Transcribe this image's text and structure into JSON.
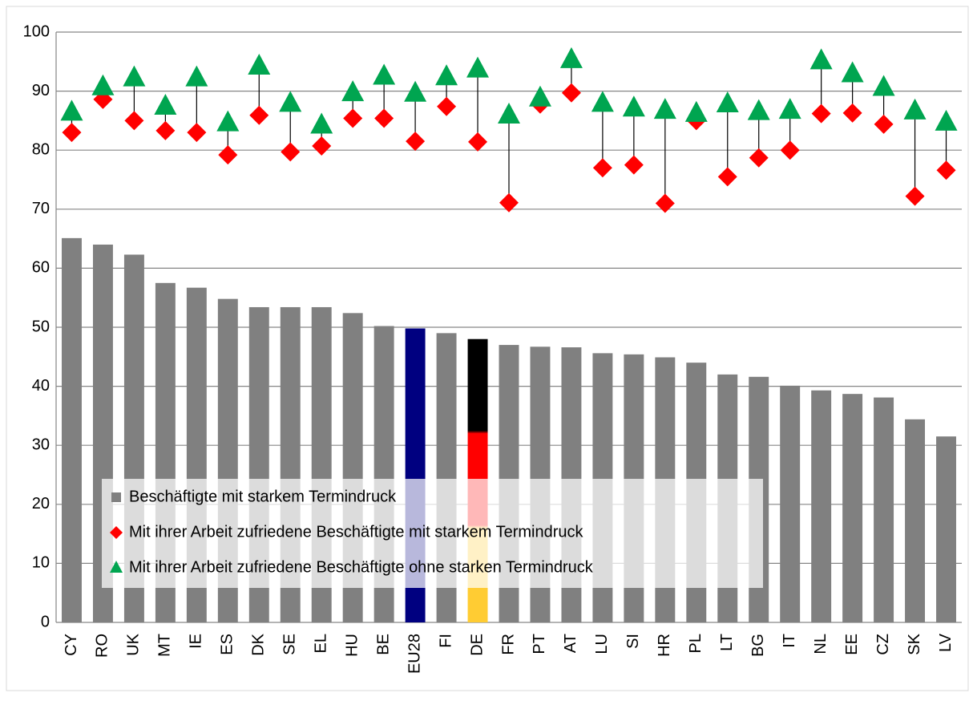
{
  "chart_data": {
    "type": "bar_dot",
    "categories": [
      "CY",
      "RO",
      "UK",
      "MT",
      "IE",
      "ES",
      "DK",
      "SE",
      "EL",
      "HU",
      "BE",
      "EU28",
      "FI",
      "DE",
      "FR",
      "PT",
      "AT",
      "LU",
      "SI",
      "HR",
      "PL",
      "LT",
      "BG",
      "IT",
      "NL",
      "EE",
      "CZ",
      "SK",
      "LV"
    ],
    "series": [
      {
        "name": "Beschäftigte mit starkem Termindruck",
        "color": "#808080",
        "colors": [
          "#808080",
          "#808080",
          "#808080",
          "#808080",
          "#808080",
          "#808080",
          "#808080",
          "#808080",
          "#808080",
          "#808080",
          "#808080",
          "#000080",
          "#808080",
          [
            "#000000",
            "#ff0000",
            "#ffcc33"
          ],
          "#808080",
          "#808080",
          "#808080",
          "#808080",
          "#808080",
          "#808080",
          "#808080",
          "#808080",
          "#808080",
          "#808080",
          "#808080",
          "#808080",
          "#808080",
          "#808080",
          "#808080"
        ],
        "values": [
          65.1,
          64,
          62.3,
          57.5,
          56.7,
          54.8,
          53.4,
          53.4,
          53.4,
          52.4,
          50.2,
          49.8,
          49,
          48,
          47,
          46.7,
          46.6,
          45.6,
          45.4,
          44.9,
          44,
          42,
          41.6,
          40.1,
          39.3,
          38.7,
          38.1,
          34.4,
          31.5
        ]
      },
      {
        "name": "Mit ihrer Arbeit zufriedene Beschäftigte mit starkem Termindruck",
        "color": "#ff0000",
        "marker": "diamond",
        "values": [
          83,
          88.6,
          85,
          83.3,
          83,
          79.2,
          85.9,
          79.7,
          80.7,
          85.4,
          85.4,
          81.5,
          87.4,
          81.4,
          71.1,
          87.8,
          89.7,
          77,
          77.5,
          71,
          85,
          75.5,
          78.7,
          80,
          86.2,
          86.3,
          84.4,
          72.2,
          76.6
        ]
      },
      {
        "name": "Mit ihrer Arbeit zufriedene Beschäftigte ohne starken Termindruck",
        "color": "#00a550",
        "marker": "triangle",
        "values": [
          86.5,
          90.8,
          92.3,
          87.5,
          92.3,
          84.7,
          94.3,
          88,
          84.3,
          89.8,
          92.6,
          89.7,
          92.5,
          93.8,
          86,
          88.9,
          95.4,
          88,
          87.2,
          86.8,
          86.3,
          87.9,
          86.6,
          86.8,
          95.2,
          93,
          90.7,
          86.7,
          84.8
        ]
      }
    ],
    "ylim": [
      0,
      100
    ],
    "yticks": [
      0,
      10,
      20,
      30,
      40,
      50,
      60,
      70,
      80,
      90,
      100
    ],
    "grid": true
  }
}
